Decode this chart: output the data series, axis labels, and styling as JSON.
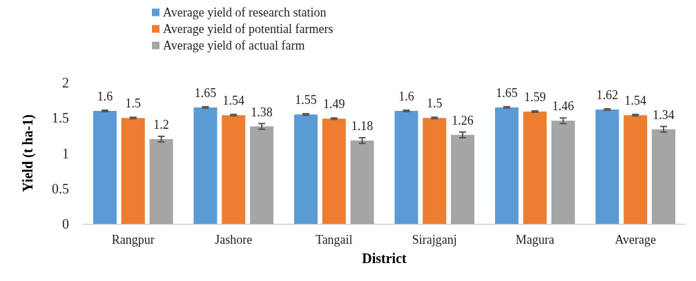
{
  "chart_data": {
    "type": "bar",
    "xlabel": "District",
    "ylabel": "Yield (t ha-1)",
    "categories": [
      "Rangpur",
      "Jashore",
      "Tangail",
      "Sirajganj",
      "Magura",
      "Average"
    ],
    "series": [
      {
        "name": "Average yield of research station",
        "color": "#5b9bd5",
        "values": [
          1.6,
          1.65,
          1.55,
          1.6,
          1.65,
          1.62
        ],
        "errors": [
          0.01,
          0.01,
          0.01,
          0.01,
          0.01,
          0.01
        ]
      },
      {
        "name": "Average yield of potential farmers",
        "color": "#ed7d31",
        "values": [
          1.5,
          1.54,
          1.49,
          1.5,
          1.59,
          1.54
        ],
        "errors": [
          0.01,
          0.01,
          0.01,
          0.01,
          0.01,
          0.01
        ]
      },
      {
        "name": "Average yield of actual farm",
        "color": "#a5a5a5",
        "values": [
          1.2,
          1.38,
          1.18,
          1.26,
          1.46,
          1.34
        ],
        "errors": [
          0.04,
          0.04,
          0.04,
          0.04,
          0.04,
          0.04
        ]
      }
    ],
    "ylim": [
      0,
      2
    ],
    "yticks": [
      0,
      0.5,
      1,
      1.5,
      2
    ],
    "grid": false,
    "legend": "top",
    "data_labels": true
  }
}
